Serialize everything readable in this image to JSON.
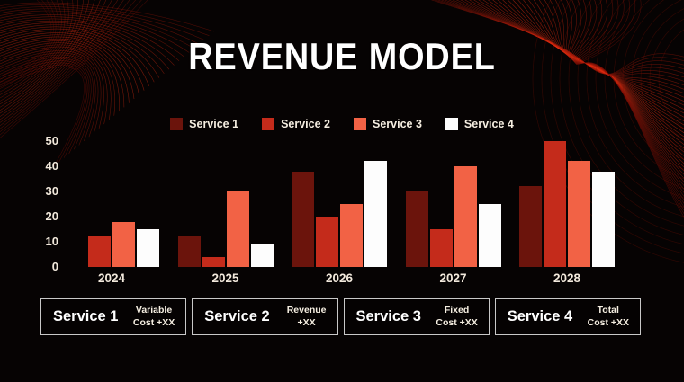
{
  "title": "REVENUE MODEL",
  "chart_data": {
    "type": "bar",
    "categories": [
      "2024",
      "2025",
      "2026",
      "2027",
      "2028"
    ],
    "series": [
      {
        "name": "Service 1",
        "color": "#6B140C",
        "values": [
          0,
          12,
          38,
          30,
          32
        ]
      },
      {
        "name": "Service 2",
        "color": "#C42B1B",
        "values": [
          12,
          4,
          20,
          15,
          50
        ]
      },
      {
        "name": "Service 3",
        "color": "#F26245",
        "values": [
          18,
          30,
          25,
          40,
          42
        ]
      },
      {
        "name": "Service 4",
        "color": "#FDFDFD",
        "values": [
          15,
          9,
          42,
          25,
          38
        ]
      }
    ],
    "ylim": [
      0,
      50
    ],
    "yticks": [
      0,
      10,
      20,
      30,
      40,
      50
    ],
    "grid": false,
    "legend_position": "top-center",
    "xlabel": "",
    "ylabel": ""
  },
  "footer_boxes": [
    {
      "title": "Service 1",
      "note": [
        "Variable",
        "Cost +XX"
      ]
    },
    {
      "title": "Service 2",
      "note": [
        "Revenue",
        "+XX"
      ]
    },
    {
      "title": "Service 3",
      "note": [
        "Fixed",
        "Cost +XX"
      ]
    },
    {
      "title": "Service 4",
      "note": [
        "Total",
        "Cost +XX"
      ]
    }
  ],
  "colors": {
    "background": "#060303",
    "title_text": "#FFFFFF",
    "axis_text": "#F2E9DC",
    "legend_text": "#F5EEE1",
    "box_border": "#C8C8C8",
    "wave_red_bright": "#E0321B",
    "wave_red_dark": "#6F0E04"
  }
}
